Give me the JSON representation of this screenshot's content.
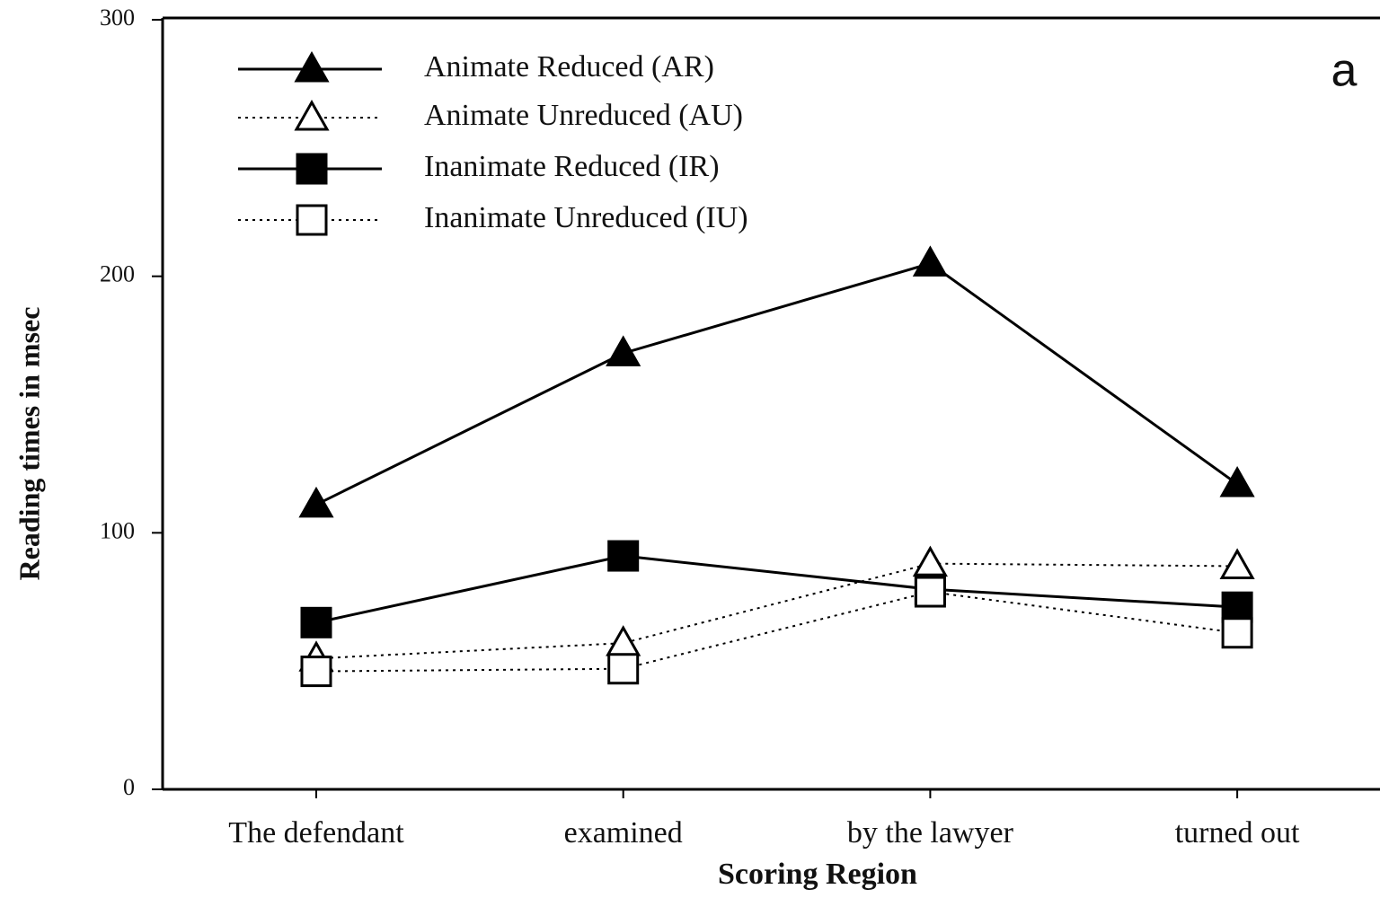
{
  "chart_data": {
    "type": "line",
    "annotation": "a",
    "xlabel": "Scoring Region",
    "ylabel": "Reading times in msec",
    "categories": [
      "The defendant",
      "examined",
      "by the lawyer",
      "turned out"
    ],
    "series": [
      {
        "name": "Animate Reduced (AR)",
        "color": "#000000",
        "marker": "triangle",
        "filled": true,
        "line_style": "solid",
        "values": [
          111,
          170,
          205,
          119
        ]
      },
      {
        "name": "Animate Unreduced (AU)",
        "color": "#000000",
        "marker": "triangle",
        "filled": false,
        "line_style": "dotted",
        "values": [
          51,
          57,
          88,
          87
        ]
      },
      {
        "name": "Inanimate Reduced (IR)",
        "color": "#000000",
        "marker": "square",
        "filled": true,
        "line_style": "solid",
        "values": [
          65,
          91,
          78,
          71
        ]
      },
      {
        "name": "Inanimate Unreduced (IU)",
        "color": "#000000",
        "marker": "square",
        "filled": false,
        "line_style": "dotted",
        "values": [
          46,
          47,
          77,
          61
        ]
      }
    ],
    "ylim": [
      0,
      300
    ],
    "yticks": [
      0,
      100,
      200,
      300
    ],
    "grid": false,
    "legend": "upper left"
  }
}
